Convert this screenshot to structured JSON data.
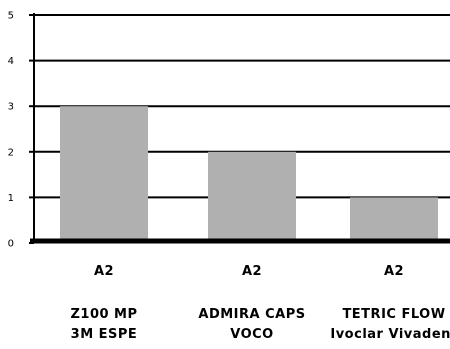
{
  "chart_data": {
    "type": "bar",
    "ylim": [
      0,
      5
    ],
    "yticks": [
      "0",
      "1",
      "2",
      "3",
      "4",
      "5"
    ],
    "grid": true,
    "bar_color": "#b0b0b0",
    "categories": [
      {
        "shade": "A2",
        "product": "Z100 MP",
        "maker": "3M ESPE"
      },
      {
        "shade": "A2",
        "product": "ADMIRA CAPS",
        "maker": "VOCO"
      },
      {
        "shade": "A2",
        "product": "TETRIC FLOW",
        "maker": "Ivoclar Vivadent"
      }
    ],
    "values": [
      3,
      2,
      1
    ]
  }
}
